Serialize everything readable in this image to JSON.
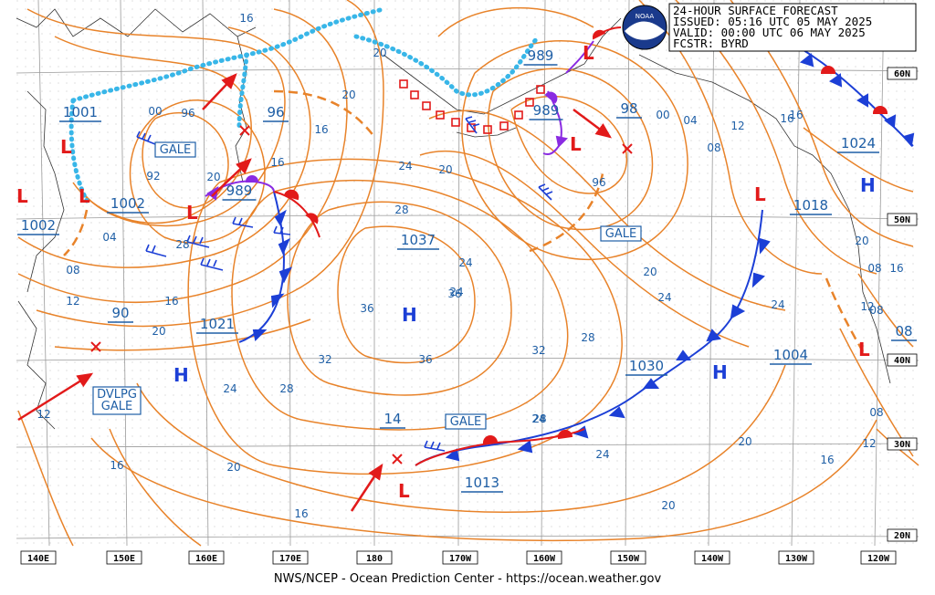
{
  "header": {
    "title": "24-HOUR SURFACE FORECAST",
    "issued": "ISSUED: 05:16 UTC 05 MAY 2025",
    "valid": "VALID:   00:00 UTC 06 MAY 2025",
    "forecaster": "FCSTR:   BYRD"
  },
  "footer": "NWS/NCEP - Ocean Prediction Center - https://ocean.weather.gov",
  "logo_text": "NOAA",
  "longitudes": [
    "140E",
    "150E",
    "160E",
    "170E",
    "180",
    "170W",
    "160W",
    "150W",
    "140W",
    "130W",
    "120W"
  ],
  "latitudes": [
    "60N",
    "50N",
    "40N",
    "30N",
    "20N"
  ],
  "pressure_centers": [
    {
      "symbol": "L",
      "value": "1001"
    },
    {
      "symbol": "L",
      "value": "1002"
    },
    {
      "symbol": "L",
      "value": "1002"
    },
    {
      "symbol": "L",
      "value": "989"
    },
    {
      "symbol": "L",
      "value": "96"
    },
    {
      "symbol": "L",
      "value": "989"
    },
    {
      "symbol": "L",
      "value": "989"
    },
    {
      "symbol": "L",
      "value": "98"
    },
    {
      "symbol": "H",
      "value": "1037"
    },
    {
      "symbol": "H",
      "value": "1021"
    },
    {
      "symbol": "H",
      "value": "90"
    },
    {
      "symbol": "H",
      "value": "1030"
    },
    {
      "symbol": "H",
      "value": "1004"
    },
    {
      "symbol": "H",
      "value": "1024"
    },
    {
      "symbol": "L",
      "value": "1018"
    },
    {
      "symbol": "L",
      "value": "14"
    },
    {
      "symbol": "L",
      "value": "1013"
    },
    {
      "symbol": "L",
      "value": "08"
    }
  ],
  "warnings": [
    "GALE",
    "GALE",
    "GALE",
    "DVLPG\nGALE"
  ],
  "isobar_labels": [
    "16",
    "00",
    "96",
    "92",
    "04",
    "08",
    "12",
    "16",
    "20",
    "16",
    "20",
    "24",
    "28",
    "36",
    "36",
    "32",
    "24",
    "28",
    "32",
    "36",
    "24",
    "20",
    "16",
    "20",
    "24",
    "28",
    "20",
    "16",
    "12",
    "04",
    "08",
    "00",
    "96",
    "16",
    "20",
    "24",
    "28",
    "24",
    "20",
    "12",
    "16",
    "08",
    "12",
    "16",
    "20",
    "24",
    "28",
    "20",
    "16",
    "08",
    "20",
    "24",
    "12",
    "16",
    "08"
  ],
  "colors": {
    "isobar": "#e8832a",
    "label": "#1f5fa6",
    "high": "#1c3fd6",
    "low": "#e21a1a",
    "cold_front": "#1c3fd6",
    "warm_front": "#e21a1a",
    "ice_edge": "#38b6e8"
  }
}
